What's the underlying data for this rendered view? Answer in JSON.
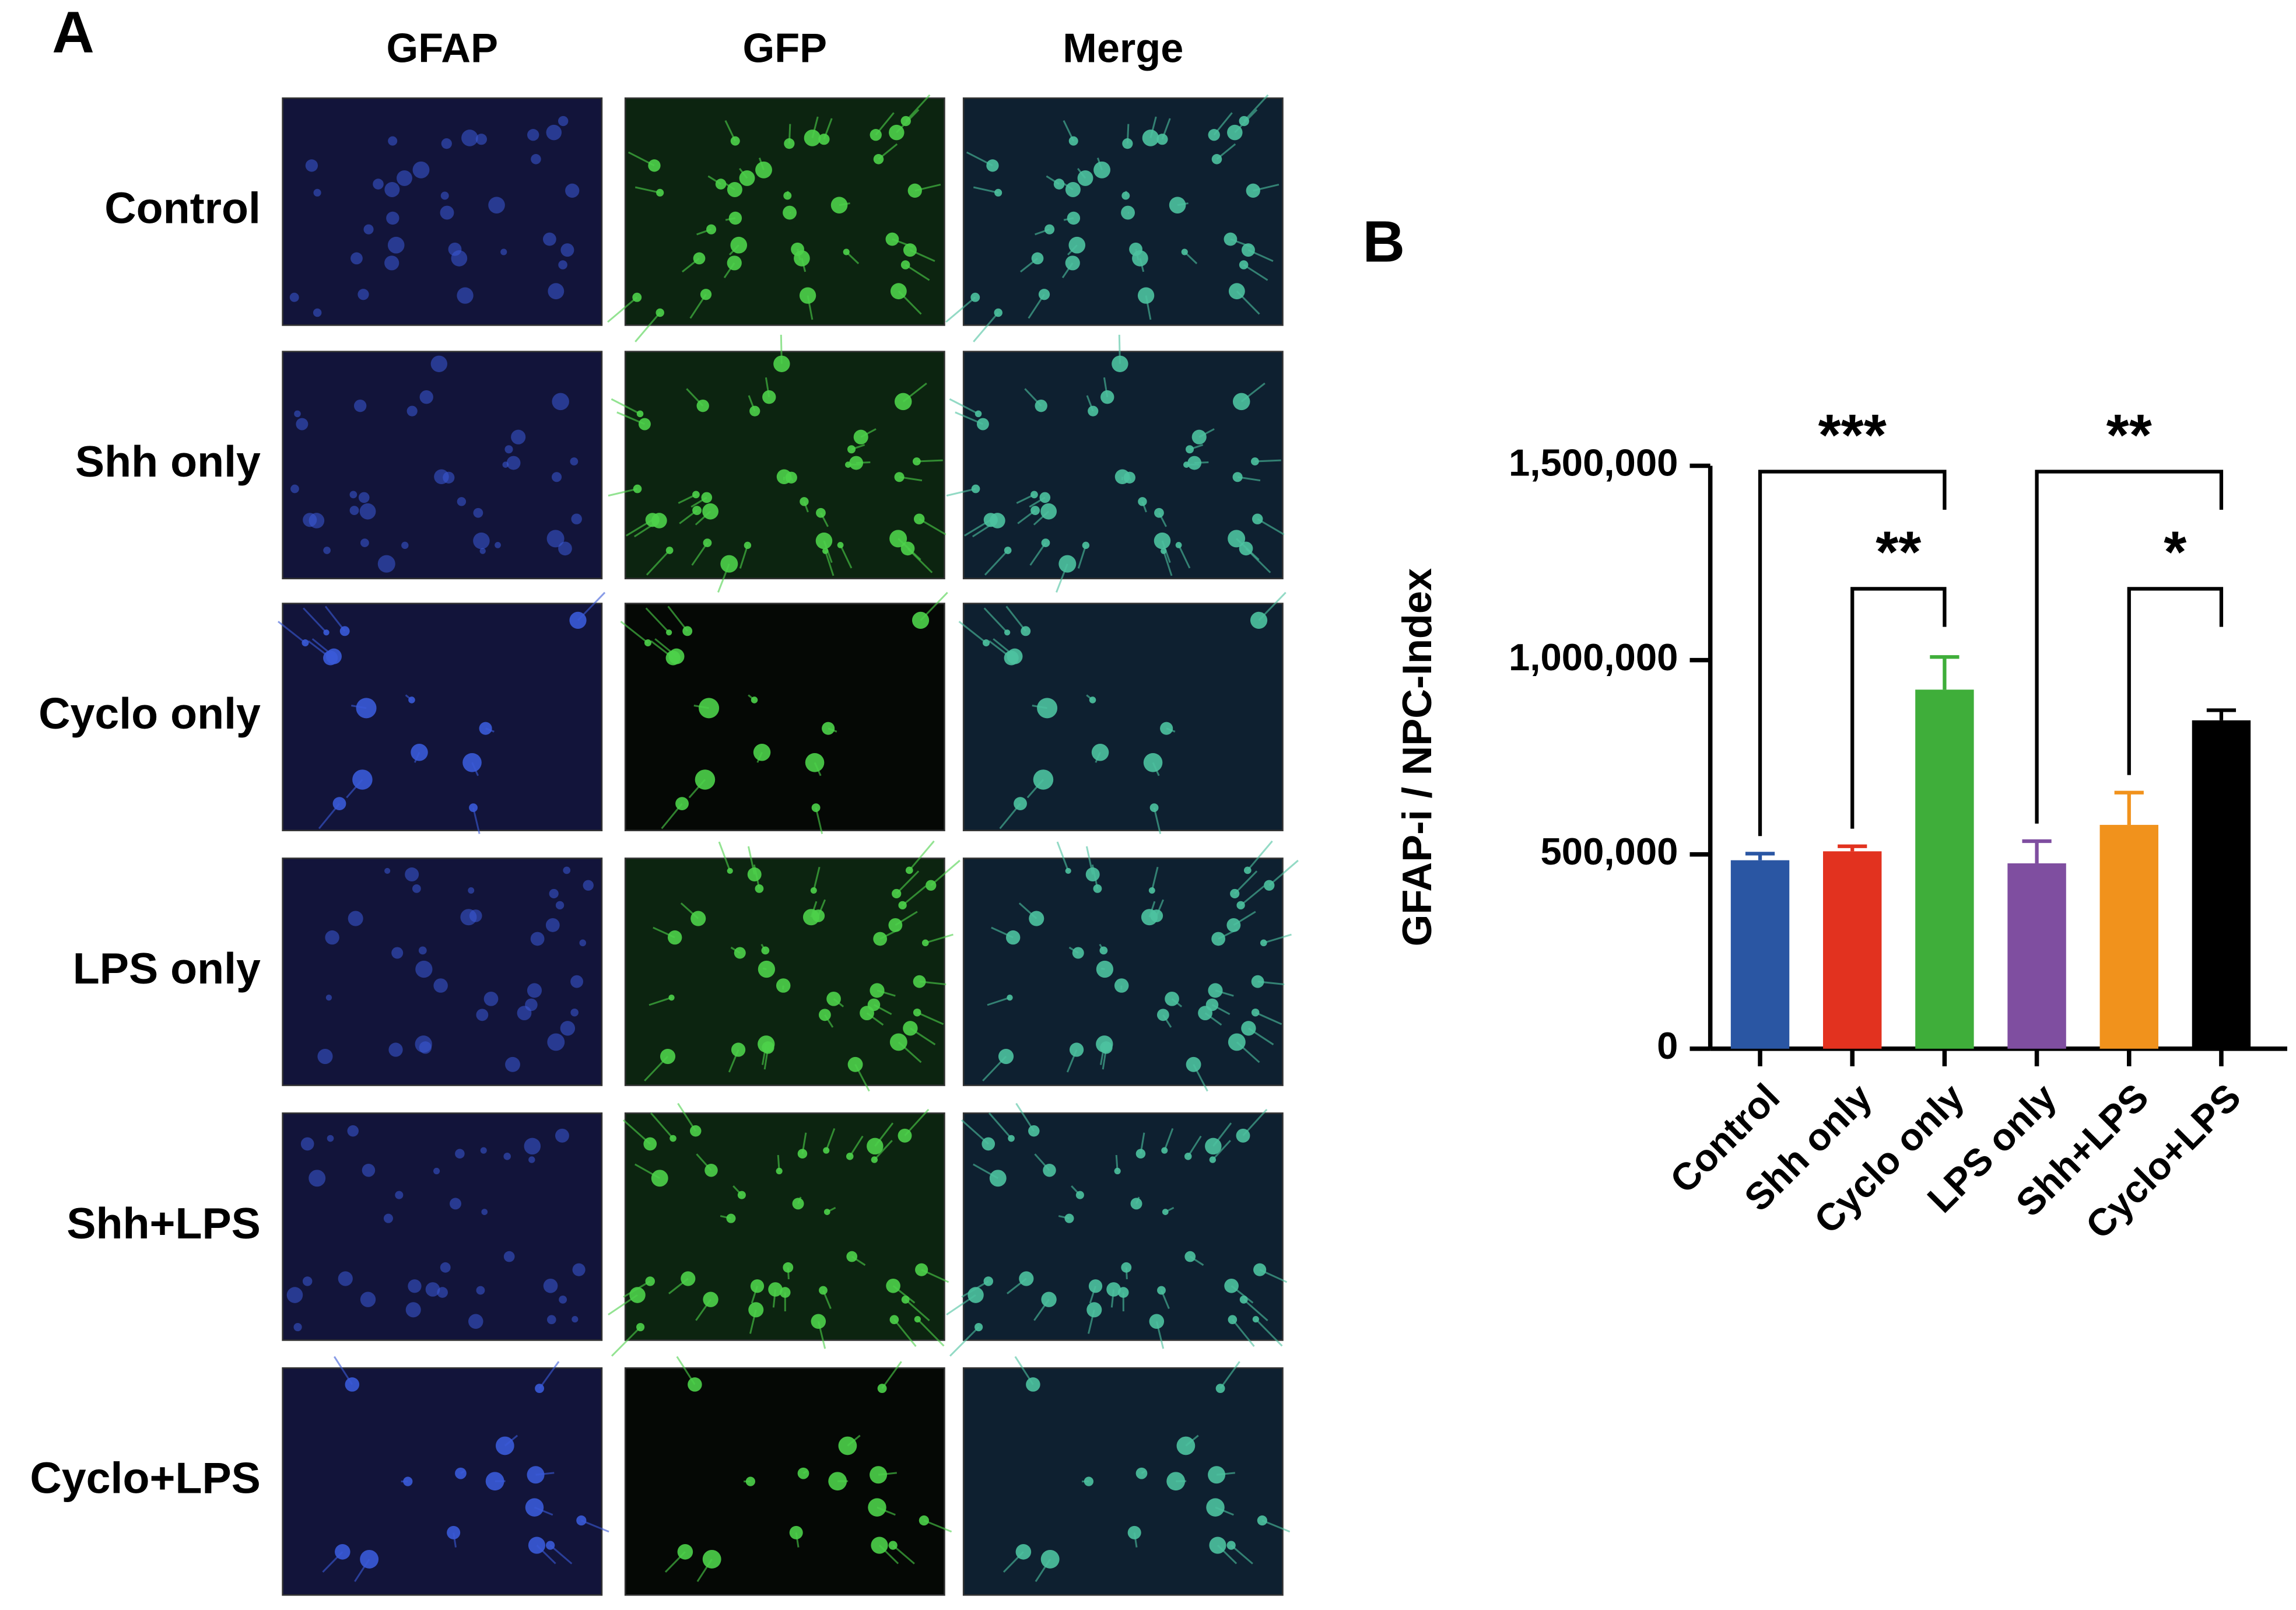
{
  "panel_a": {
    "label": "A",
    "columns": [
      "GFAP",
      "GFP",
      "Merge"
    ],
    "rows": [
      "Control",
      "Shh only",
      "Cyclo only",
      "LPS only",
      "Shh+LPS",
      "Cyclo+LPS"
    ]
  },
  "chart_data": {
    "type": "bar",
    "panel_label": "B",
    "ylabel": "GFAP-i / NPC-Index",
    "categories": [
      "Control",
      "Shh only",
      "Cyclo only",
      "LPS only",
      "Shh+LPS",
      "Cyclo+LPS"
    ],
    "values": [
      485000,
      508000,
      924000,
      477000,
      576000,
      845000
    ],
    "errors": [
      17000,
      13000,
      84000,
      57000,
      83000,
      26000
    ],
    "colors": [
      "#2a56a3",
      "#e2321f",
      "#3fae3a",
      "#7f4ea0",
      "#f1921c",
      "#000000"
    ],
    "ylim": [
      0,
      1500000
    ],
    "yticks": [
      0,
      {
        "value": 500000,
        "label": "500,000"
      },
      {
        "value": 1000000,
        "label": "1,000,000"
      },
      {
        "value": 1500000,
        "label": "1,500,000"
      }
    ],
    "significance": [
      {
        "between": [
          0,
          2
        ],
        "label": "***"
      },
      {
        "between": [
          1,
          2
        ],
        "label": "**"
      },
      {
        "between": [
          3,
          5
        ],
        "label": "**"
      },
      {
        "between": [
          4,
          5
        ],
        "label": "*"
      }
    ]
  }
}
